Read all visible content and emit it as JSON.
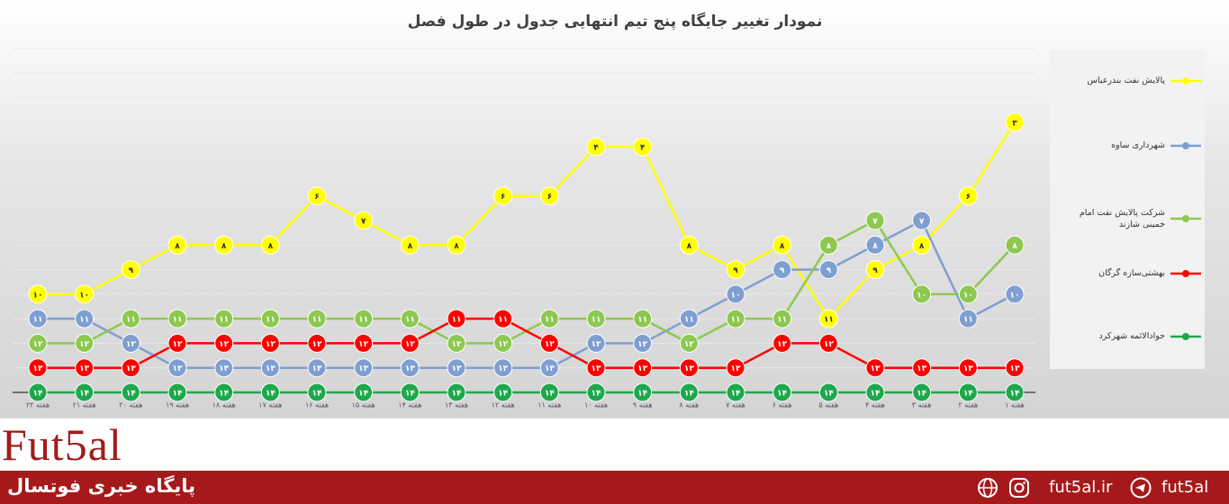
{
  "chart_data": {
    "type": "line",
    "title": "نمودار تغییر جایگاه پنج تیم انتهایی جدول در طول فصل",
    "categories": [
      "هفته ۲۲",
      "هفته ۲۱",
      "هفته ۲۰",
      "هفته ۱۹",
      "هفته ۱۸",
      "هفته ۱۷",
      "هفته ۱۶",
      "هفته ۱۵",
      "هفته ۱۴",
      "هفته ۱۳",
      "هفته ۱۲",
      "هفته ۱۱",
      "هفته ۱۰",
      "هفته ۹",
      "هفته ۸",
      "هفته ۷",
      "هفته ۶",
      "هفته ۵",
      "هفته ۴",
      "هفته ۳",
      "هفته ۲",
      "هفته ۱"
    ],
    "ylim": [
      14,
      0
    ],
    "yticks": [
      0,
      1,
      2,
      3,
      4,
      5,
      6,
      7,
      8,
      9,
      10,
      11,
      12,
      13,
      14
    ],
    "grid": true,
    "legend": "right",
    "series": [
      {
        "name": "پالایش نفت بندرعباس",
        "color": "#ffff00",
        "values": [
          10,
          10,
          9,
          8,
          8,
          8,
          6,
          7,
          8,
          8,
          6,
          6,
          4,
          4,
          8,
          9,
          8,
          11,
          9,
          8,
          6,
          3
        ],
        "value_labels": [
          "۱۰",
          "۱۰",
          "۹",
          "۸",
          "۸",
          "۸",
          "۶",
          "۷",
          "۸",
          "۸",
          "۶",
          "۶",
          "۴",
          "۴",
          "۸",
          "۹",
          "۸",
          "۱۱",
          "۹",
          "۸",
          "۶",
          "۳"
        ]
      },
      {
        "name": "شهرداری ساوه",
        "color": "#7f9fd2",
        "values": [
          11,
          11,
          12,
          13,
          13,
          13,
          13,
          13,
          13,
          13,
          13,
          13,
          12,
          12,
          11,
          10,
          9,
          9,
          8,
          7,
          11,
          10
        ],
        "value_labels": [
          "۱۱",
          "۱۱",
          "۱۲",
          "۱۳",
          "۱۳",
          "۱۳",
          "۱۳",
          "۱۳",
          "۱۳",
          "۱۳",
          "۱۳",
          "۱۳",
          "۱۲",
          "۱۲",
          "۱۱",
          "۱۰",
          "۹",
          "۹",
          "۸",
          "۷",
          "۱۱",
          "۱۰"
        ]
      },
      {
        "name": "شرکت پالایش نفت امام خمینی شازند",
        "color": "#8dc850",
        "values": [
          12,
          12,
          11,
          11,
          11,
          11,
          11,
          11,
          11,
          12,
          12,
          11,
          11,
          11,
          12,
          11,
          11,
          8,
          7,
          10,
          10,
          8
        ],
        "value_labels": [
          "۱۲",
          "۱۲",
          "۱۱",
          "۱۱",
          "۱۱",
          "۱۱",
          "۱۱",
          "۱۱",
          "۱۱",
          "۱۲",
          "۱۲",
          "۱۱",
          "۱۱",
          "۱۱",
          "۱۲",
          "۱۱",
          "۱۱",
          "۸",
          "۷",
          "۱۰",
          "۱۰",
          "۸"
        ]
      },
      {
        "name": "بهشتی‌سازه گرگان",
        "color": "#ff0000",
        "values": [
          13,
          13,
          13,
          12,
          12,
          12,
          12,
          12,
          12,
          11,
          11,
          12,
          13,
          13,
          13,
          13,
          12,
          12,
          13,
          13,
          13,
          13
        ],
        "value_labels": [
          "۱۳",
          "۱۳",
          "۱۳",
          "۱۲",
          "۱۲",
          "۱۲",
          "۱۲",
          "۱۲",
          "۱۲",
          "۱۱",
          "۱۱",
          "۱۲",
          "۱۳",
          "۱۳",
          "۱۳",
          "۱۳",
          "۱۲",
          "۱۲",
          "۱۳",
          "۱۳",
          "۱۳",
          "۱۳"
        ]
      },
      {
        "name": "جوادالائمه شهرکرد",
        "color": "#1ea84b",
        "values": [
          14,
          14,
          14,
          14,
          14,
          14,
          14,
          14,
          14,
          14,
          14,
          14,
          14,
          14,
          14,
          14,
          14,
          14,
          14,
          14,
          14,
          14
        ],
        "value_labels": [
          "۱۴",
          "۱۴",
          "۱۴",
          "۱۴",
          "۱۴",
          "۱۴",
          "۱۴",
          "۱۴",
          "۱۴",
          "۱۴",
          "۱۴",
          "۱۴",
          "۱۴",
          "۱۴",
          "۱۴",
          "۱۴",
          "۱۴",
          "۱۴",
          "۱۴",
          "۱۴",
          "۱۴",
          "۱۴"
        ]
      }
    ]
  },
  "footer": {
    "logo": "Fut5al",
    "tagline": "پایگاه خبری فوتسال",
    "site": "fut5al.ir",
    "handle": "fut5al"
  }
}
